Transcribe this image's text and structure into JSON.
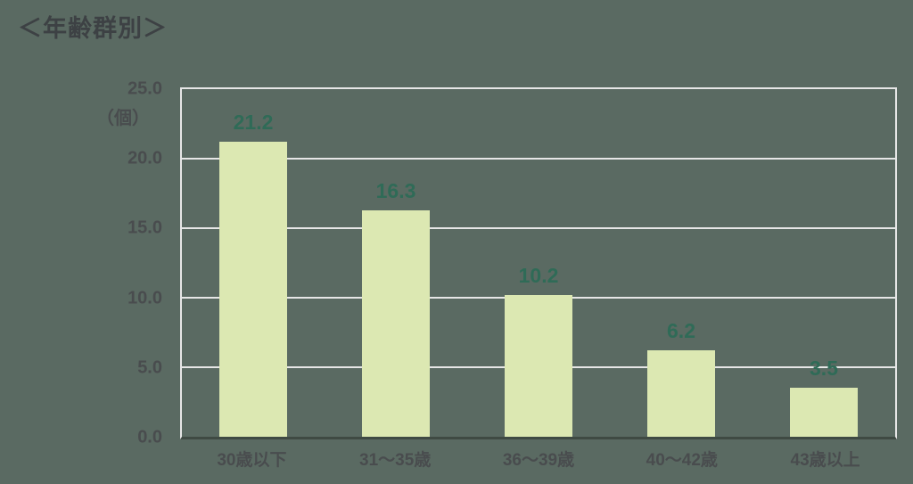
{
  "page": {
    "title": "＜年齢群別＞"
  },
  "colors": {
    "background": "#5a6a62",
    "bar_fill": "#dce8b2",
    "value_label": "#2f6b57",
    "gridline": "#e6e6e6",
    "title_text": "#3d4144",
    "axis_text": "#494c4e",
    "baseline": "#3f4a43"
  },
  "chart_data": {
    "type": "bar",
    "title": "＜年齢群別＞",
    "unit_label": "（個）",
    "categories": [
      "30歳以下",
      "31～35歳",
      "36～39歳",
      "40～42歳",
      "43歳以上"
    ],
    "values": [
      21.2,
      16.3,
      10.2,
      6.2,
      3.5
    ],
    "value_labels": [
      "21.2",
      "16.3",
      "10.2",
      "6.2",
      "3.5"
    ],
    "xlabel": "",
    "ylabel": "（個）",
    "ylim": [
      0,
      25
    ],
    "ytick_interval": 5,
    "ytick_labels": [
      "25.0",
      "20.0",
      "15.0",
      "10.0",
      "5.0",
      "0.0"
    ],
    "grid": "horizontal",
    "legend": "none"
  }
}
